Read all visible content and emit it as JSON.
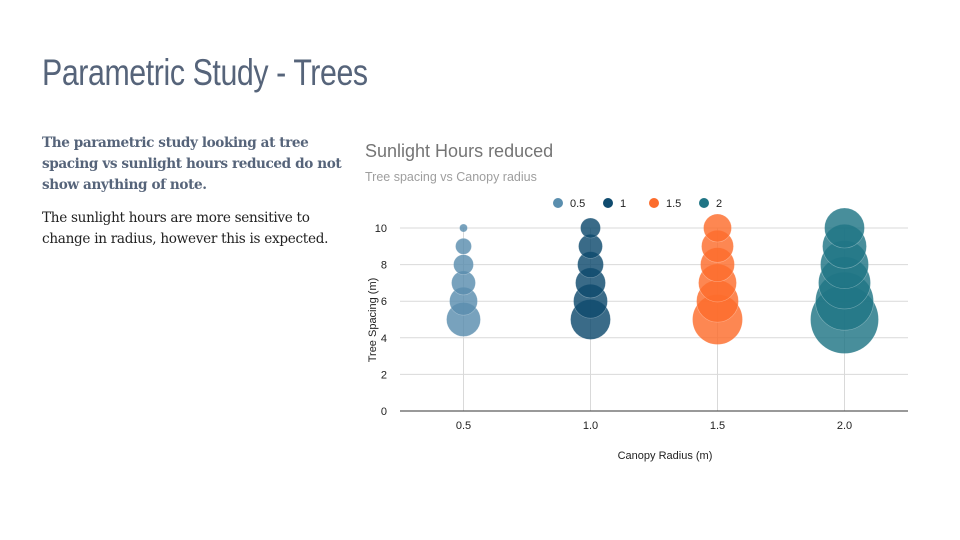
{
  "slide": {
    "title": "Parametric Study - Trees",
    "paragraph_bold": "The parametric study looking at tree spacing vs sunlight hours reduced do not show anything of note.",
    "paragraph": "The sunlight hours are more sensitive to change in radius, however this is expected."
  },
  "chart_data": {
    "type": "scatter",
    "subtype": "bubble",
    "title": "Sunlight Hours reduced",
    "subtitle": "Tree spacing vs Canopy radius",
    "xlabel": "Canopy Radius (m)",
    "ylabel": "Tree Spacing (m)",
    "xticks": [
      "0.5",
      "1.0",
      "1.5",
      "2.0"
    ],
    "xlim": [
      0.25,
      2.25
    ],
    "ylim": [
      0,
      10
    ],
    "yticks": [
      0,
      2,
      4,
      6,
      8,
      10
    ],
    "grid": true,
    "legend_position": "top",
    "series": [
      {
        "name": "0.5",
        "color": "#5a8eae",
        "points": [
          {
            "x": 0.5,
            "y": 10,
            "r": 4
          },
          {
            "x": 0.5,
            "y": 9,
            "r": 8
          },
          {
            "x": 0.5,
            "y": 8,
            "r": 10
          },
          {
            "x": 0.5,
            "y": 7,
            "r": 12
          },
          {
            "x": 0.5,
            "y": 6,
            "r": 14
          },
          {
            "x": 0.5,
            "y": 5,
            "r": 17
          }
        ]
      },
      {
        "name": "1",
        "color": "#0f4b6e",
        "points": [
          {
            "x": 1.0,
            "y": 10,
            "r": 10
          },
          {
            "x": 1.0,
            "y": 9,
            "r": 12
          },
          {
            "x": 1.0,
            "y": 8,
            "r": 13
          },
          {
            "x": 1.0,
            "y": 7,
            "r": 15
          },
          {
            "x": 1.0,
            "y": 6,
            "r": 17
          },
          {
            "x": 1.0,
            "y": 5,
            "r": 20
          }
        ]
      },
      {
        "name": "1.5",
        "color": "#fc6c2c",
        "points": [
          {
            "x": 1.5,
            "y": 10,
            "r": 14
          },
          {
            "x": 1.5,
            "y": 9,
            "r": 16
          },
          {
            "x": 1.5,
            "y": 8,
            "r": 17
          },
          {
            "x": 1.5,
            "y": 7,
            "r": 19
          },
          {
            "x": 1.5,
            "y": 6,
            "r": 21
          },
          {
            "x": 1.5,
            "y": 5,
            "r": 25
          }
        ]
      },
      {
        "name": "2",
        "color": "#207585",
        "points": [
          {
            "x": 2.0,
            "y": 10,
            "r": 20
          },
          {
            "x": 2.0,
            "y": 9,
            "r": 22
          },
          {
            "x": 2.0,
            "y": 8,
            "r": 24
          },
          {
            "x": 2.0,
            "y": 7,
            "r": 26
          },
          {
            "x": 2.0,
            "y": 6,
            "r": 29
          },
          {
            "x": 2.0,
            "y": 5,
            "r": 34
          }
        ]
      }
    ]
  }
}
